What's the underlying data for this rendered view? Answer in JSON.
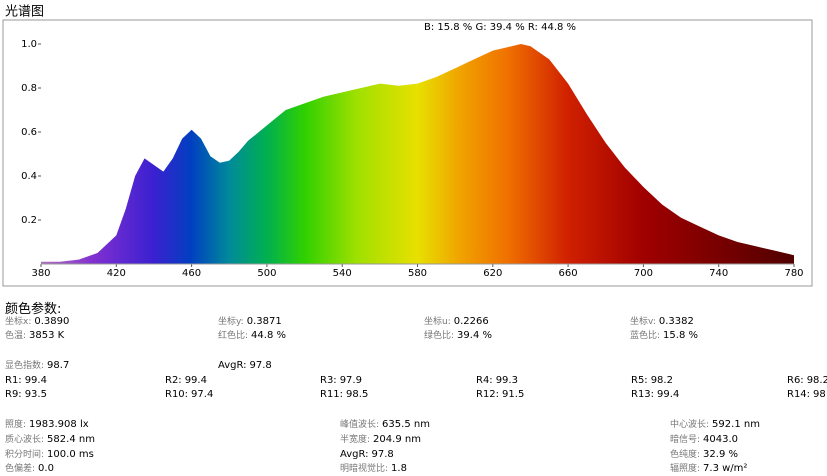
{
  "chart_data": {
    "type": "area",
    "title": "光谱图",
    "annotation": "B: 15.8 %   G: 39.4 %   R: 44.8 %",
    "x": [
      380,
      390,
      400,
      410,
      420,
      425,
      430,
      435,
      440,
      445,
      450,
      455,
      460,
      465,
      470,
      475,
      480,
      485,
      490,
      500,
      510,
      520,
      530,
      540,
      550,
      560,
      570,
      580,
      590,
      600,
      610,
      620,
      630,
      635,
      640,
      650,
      660,
      670,
      680,
      690,
      700,
      710,
      720,
      730,
      740,
      750,
      760,
      770,
      780
    ],
    "values": [
      0.01,
      0.01,
      0.02,
      0.05,
      0.13,
      0.25,
      0.4,
      0.48,
      0.45,
      0.42,
      0.48,
      0.57,
      0.61,
      0.57,
      0.49,
      0.46,
      0.47,
      0.51,
      0.56,
      0.63,
      0.7,
      0.73,
      0.76,
      0.78,
      0.8,
      0.82,
      0.81,
      0.82,
      0.85,
      0.89,
      0.93,
      0.97,
      0.99,
      1.0,
      0.99,
      0.93,
      0.82,
      0.68,
      0.55,
      0.44,
      0.35,
      0.27,
      0.21,
      0.17,
      0.13,
      0.1,
      0.08,
      0.06,
      0.04
    ],
    "xlim": [
      380,
      780
    ],
    "xticks": [
      380,
      420,
      460,
      500,
      540,
      580,
      620,
      660,
      700,
      740,
      780
    ],
    "ylim": [
      0,
      1
    ],
    "yticks": [
      0.2,
      0.4,
      0.6,
      0.8,
      {
        "value": 1,
        "label": "1.0"
      }
    ]
  },
  "params": {
    "title": "颜色参数:",
    "rows": [
      [
        {
          "label": "坐标x:",
          "value": "0.3890"
        },
        {
          "label": "坐标y:",
          "value": "0.3871"
        },
        {
          "label": "坐标u:",
          "value": "0.2266"
        },
        {
          "label": "坐标v:",
          "value": "0.3382"
        }
      ],
      [
        {
          "label": "色温:",
          "value": "3853 K"
        },
        {
          "label": "红色比:",
          "value": "44.8 %"
        },
        {
          "label": "绿色比:",
          "value": "39.4 %"
        },
        {
          "label": "蓝色比:",
          "value": "15.8 %"
        }
      ],
      [
        {
          "label": "显色指数:",
          "value": "98.7"
        },
        {
          "label": "AvgR:",
          "value": "97.8"
        }
      ],
      [
        {
          "label": "R1:",
          "value": "99.4"
        },
        {
          "label": "R2:",
          "value": "99.4"
        },
        {
          "label": "R3:",
          "value": "97.9"
        },
        {
          "label": "R4:",
          "value": "99.3"
        },
        {
          "label": "R5:",
          "value": "98.2"
        },
        {
          "label": "R6:",
          "value": "98.2"
        }
      ],
      [
        {
          "label": "R9:",
          "value": "93.5"
        },
        {
          "label": "R10:",
          "value": "97.4"
        },
        {
          "label": "R11:",
          "value": "98.5"
        },
        {
          "label": "R12:",
          "value": "91.5"
        },
        {
          "label": "R13:",
          "value": "99.4"
        },
        {
          "label": "R14:",
          "value": "98"
        }
      ],
      [
        {
          "label": "照度:",
          "value": "1983.908 lx"
        },
        {
          "label": "峰值波长:",
          "value": "635.5 nm"
        },
        {
          "label": "中心波长:",
          "value": "592.1 nm"
        }
      ],
      [
        {
          "label": "质心波长:",
          "value": "582.4 nm"
        },
        {
          "label": "半宽度:",
          "value": "204.9 nm"
        },
        {
          "label": "暗信号:",
          "value": "4043.0"
        }
      ],
      [
        {
          "label": "积分时间:",
          "value": "100.0 ms"
        },
        {
          "label": "AvgR:",
          "value": "97.8"
        },
        {
          "label": "色纯度:",
          "value": "32.9 %"
        }
      ],
      [
        {
          "label": "色偏差:",
          "value": "0.0"
        },
        {
          "label": "明暗视觉比:",
          "value": "1.8"
        },
        {
          "label": "辐照度:",
          "value": "7.3 w/m²"
        }
      ]
    ]
  }
}
